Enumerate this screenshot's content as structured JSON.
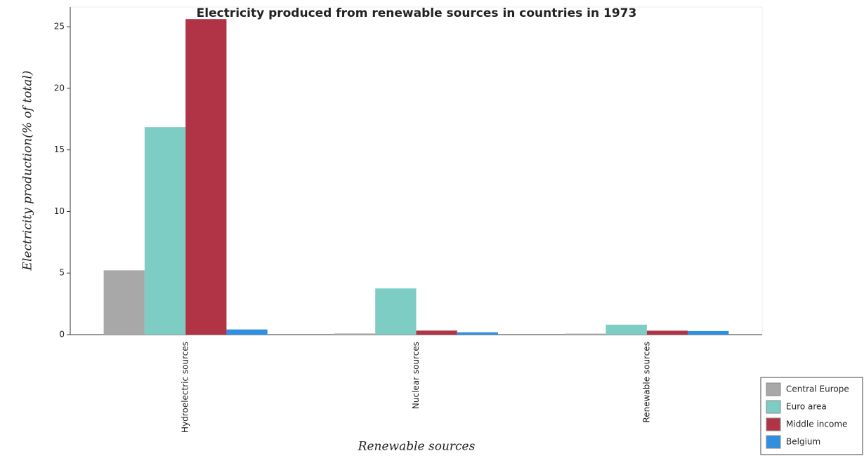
{
  "chart_data": {
    "type": "bar",
    "title": "Electricity produced from renewable sources in countries in 1973",
    "x_label": "Renewable sources",
    "y_label": "Electricity production(% of total)",
    "categories": [
      "Hydroelectric sources",
      "Nuclear sources",
      "Renewable sources"
    ],
    "series": [
      {
        "name": "Central Europe",
        "color": "#a8a8a8",
        "values": [
          5.22,
          0.09,
          0.08
        ]
      },
      {
        "name": "Euro area",
        "color": "#7dcdc4",
        "values": [
          16.85,
          3.75,
          0.81
        ]
      },
      {
        "name": "Middle income",
        "color": "#b03446",
        "values": [
          25.62,
          0.33,
          0.32
        ]
      },
      {
        "name": "Belgium",
        "color": "#2f8fe0",
        "values": [
          0.42,
          0.19,
          0.29
        ]
      }
    ],
    "ylim": [
      0,
      26.6
    ],
    "yticks": [
      0,
      5,
      10,
      15,
      20,
      25
    ],
    "grid": false,
    "legend": "bottom-right"
  }
}
